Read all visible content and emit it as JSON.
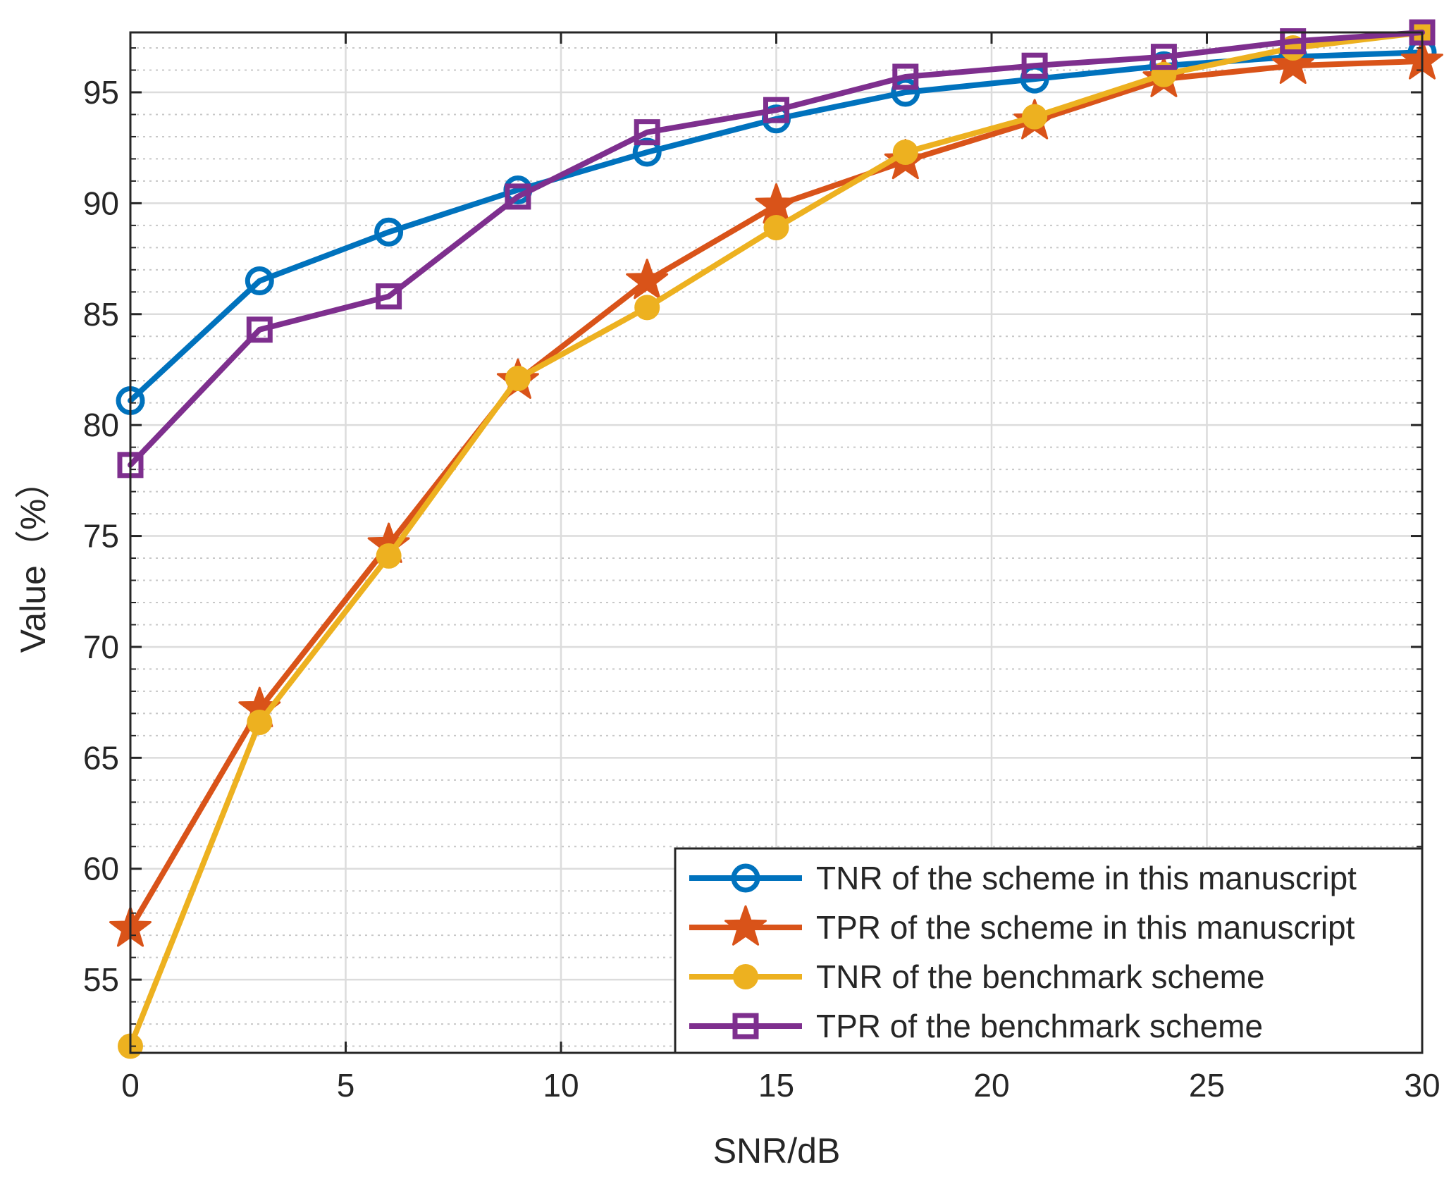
{
  "chart_data": {
    "type": "line",
    "title": "",
    "xlabel": "SNR/dB",
    "ylabel": "Value（%）",
    "xlim": [
      0,
      30
    ],
    "ylim": [
      51.7,
      97.7
    ],
    "x_ticks": [
      0,
      5,
      10,
      15,
      20,
      25,
      30
    ],
    "y_ticks": [
      55,
      60,
      65,
      70,
      75,
      80,
      85,
      90,
      95
    ],
    "y_minor_step": 1,
    "grid": true,
    "minor_grid": true,
    "legend_position": "bottom-right",
    "x": [
      0,
      3,
      6,
      9,
      12,
      15,
      18,
      21,
      24,
      27,
      30
    ],
    "series": [
      {
        "name": "TNR of the scheme in this manuscript",
        "color": "#0072BD",
        "marker": "circle-open",
        "values": [
          81.1,
          86.5,
          88.7,
          90.6,
          92.3,
          93.8,
          95.0,
          95.6,
          96.2,
          96.6,
          96.8
        ]
      },
      {
        "name": "TPR of the scheme in this manuscript",
        "color": "#D95319",
        "marker": "star",
        "values": [
          57.3,
          67.2,
          74.6,
          82.0,
          86.5,
          89.9,
          91.9,
          93.7,
          95.6,
          96.2,
          96.4
        ]
      },
      {
        "name": "TNR of the benchmark scheme",
        "color": "#EDB120",
        "marker": "circle-filled",
        "values": [
          52.0,
          66.6,
          74.1,
          82.1,
          85.3,
          88.9,
          92.3,
          93.9,
          95.8,
          97.0,
          97.7
        ]
      },
      {
        "name": "TPR of the benchmark scheme",
        "color": "#7E2F8E",
        "marker": "square-open",
        "values": [
          78.2,
          84.3,
          85.8,
          90.3,
          93.2,
          94.2,
          95.7,
          96.2,
          96.6,
          97.3,
          97.7
        ]
      }
    ]
  }
}
